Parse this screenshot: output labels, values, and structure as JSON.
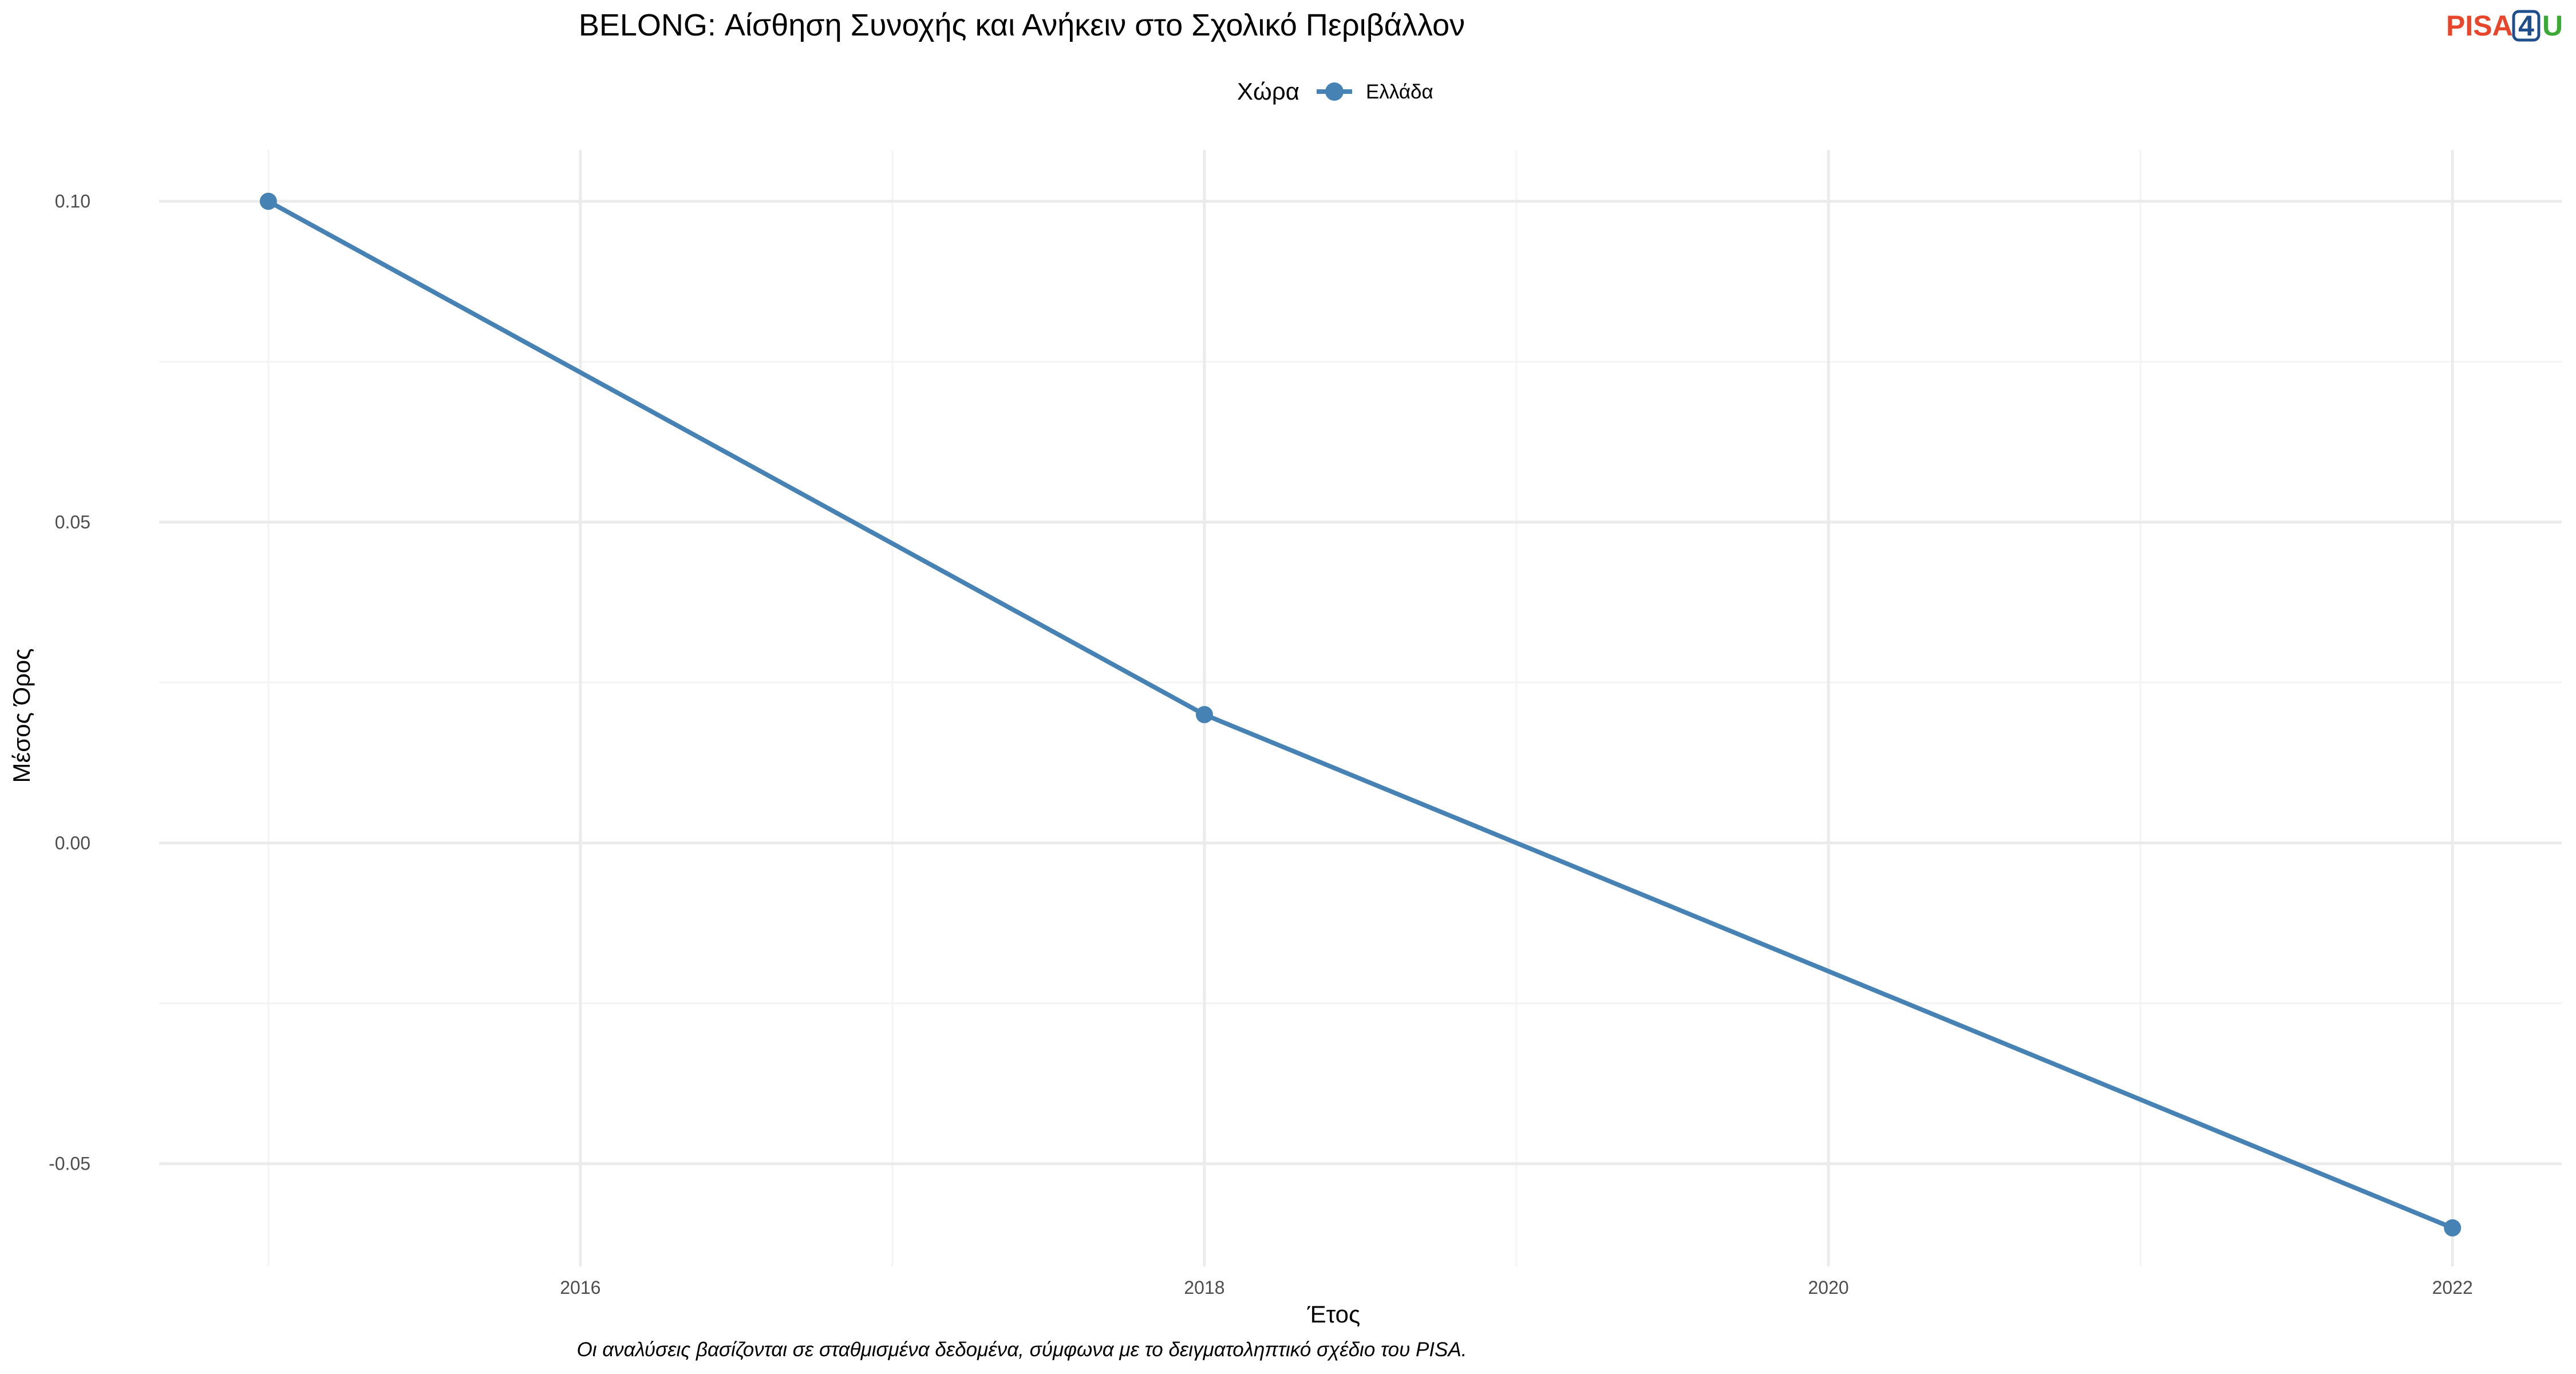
{
  "colors": {
    "series": "#4682b4",
    "logo_pisa": "#e8462a",
    "logo_four": "#1f4e8c",
    "logo_u": "#3aaa35"
  },
  "logo": {
    "pisa": "PISA",
    "four": "4",
    "u": "U"
  },
  "chart_data": {
    "type": "line",
    "title": "BELONG: Αίσθηση Συνοχής και Ανήκειν στο Σχολικό Περιβάλλον",
    "xlabel": "Έτος",
    "ylabel": "Μέσος Όρος",
    "caption": "Οι αναλύσεις βασίζονται σε σταθμισμένα δεδομένα, σύμφωνα με το δειγματοληπτικό σχέδιο του PISA.",
    "legend": {
      "title": "Χώρα",
      "position": "top"
    },
    "x": [
      2015,
      2018,
      2022
    ],
    "series": [
      {
        "name": "Ελλάδα",
        "values": [
          0.1,
          0.02,
          -0.06
        ]
      }
    ],
    "xticks": [
      2016,
      2018,
      2020,
      2022
    ],
    "xtick_labels": [
      "2016",
      "2018",
      "2020",
      "2022"
    ],
    "yticks": [
      -0.05,
      0.0,
      0.05,
      0.1
    ],
    "ytick_labels": [
      "-0.05",
      "0.00",
      "0.05",
      "0.10"
    ],
    "xlim": [
      2014.65,
      2022.35
    ],
    "ylim": [
      -0.066,
      0.108
    ],
    "grid": true
  }
}
